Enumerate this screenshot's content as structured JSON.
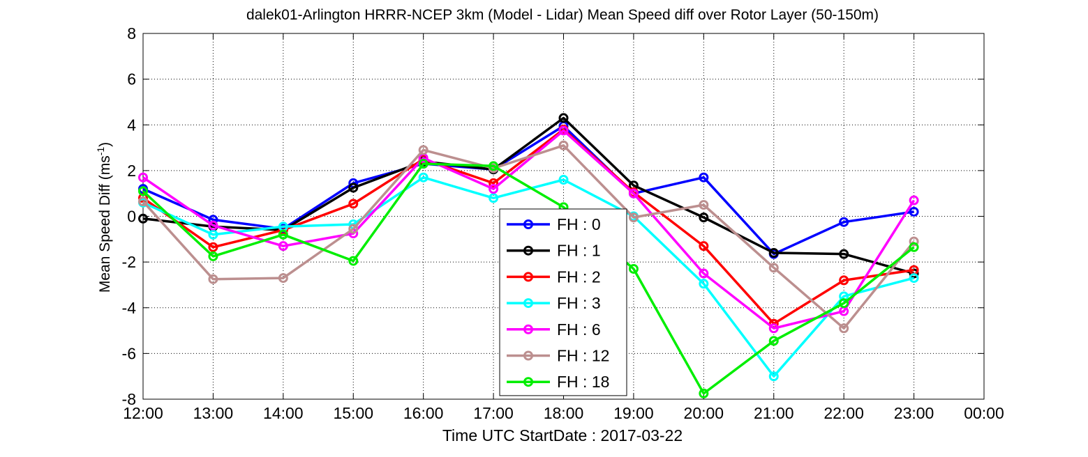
{
  "chart_data": {
    "type": "line",
    "title": "dalek01-Arlington HRRR-NCEP 3km (Model - Lidar) Mean Speed diff over Rotor Layer (50-150m)",
    "xlabel": "Time UTC    StartDate : 2017-03-22",
    "ylabel": "Mean Speed Diff (ms",
    "ylabel_sup": "-1",
    "ylabel_end": ")",
    "x_ticks": [
      "12:00",
      "13:00",
      "14:00",
      "15:00",
      "16:00",
      "17:00",
      "18:00",
      "19:00",
      "20:00",
      "21:00",
      "22:00",
      "23:00",
      "00:00"
    ],
    "xlim": [
      12,
      24
    ],
    "ylim": [
      -8,
      8
    ],
    "y_ticks": [
      "-8",
      "-6",
      "-4",
      "-2",
      "0",
      "2",
      "4",
      "6",
      "8"
    ],
    "grid": true,
    "legend_position": "bottom-center",
    "series": [
      {
        "name": "FH : 0",
        "color": "#0000ff",
        "x": [
          12,
          13,
          14,
          15,
          16,
          17,
          18,
          19,
          20,
          21,
          22,
          23
        ],
        "values": [
          1.2,
          -0.15,
          -0.55,
          1.45,
          2.3,
          2.05,
          3.95,
          1.0,
          1.7,
          -1.65,
          -0.25,
          0.2
        ]
      },
      {
        "name": "FH : 1",
        "color": "#000000",
        "x": [
          12,
          13,
          14,
          15,
          16,
          17,
          18,
          19,
          20,
          21,
          22,
          23
        ],
        "values": [
          -0.1,
          -0.45,
          -0.6,
          1.25,
          2.4,
          2.05,
          4.3,
          1.35,
          -0.05,
          -1.6,
          -1.65,
          -2.5
        ]
      },
      {
        "name": "FH : 2",
        "color": "#ff0000",
        "x": [
          12,
          13,
          14,
          15,
          16,
          17,
          18,
          19,
          20,
          21,
          22,
          23
        ],
        "values": [
          0.8,
          -1.35,
          -0.6,
          0.55,
          2.5,
          1.45,
          3.8,
          1.05,
          -1.3,
          -4.7,
          -2.8,
          -2.35
        ]
      },
      {
        "name": "FH : 3",
        "color": "#00ffff",
        "x": [
          12,
          13,
          14,
          15,
          16,
          17,
          18,
          19,
          20,
          21,
          22,
          23
        ],
        "values": [
          0.6,
          -0.8,
          -0.45,
          -0.35,
          1.7,
          0.8,
          1.6,
          0.0,
          -2.95,
          -7.0,
          -3.5,
          -2.7
        ]
      },
      {
        "name": "FH : 6",
        "color": "#ff00ff",
        "x": [
          12,
          13,
          14,
          15,
          16,
          17,
          18,
          19,
          20,
          21,
          22,
          23
        ],
        "values": [
          1.7,
          -0.4,
          -1.3,
          -0.75,
          2.55,
          1.2,
          3.75,
          1.0,
          -2.5,
          -4.9,
          -4.15,
          0.7
        ]
      },
      {
        "name": "FH : 12",
        "color": "#bc8f8f",
        "x": [
          12,
          13,
          14,
          15,
          16,
          17,
          18,
          19,
          20,
          21,
          22,
          23
        ],
        "values": [
          0.65,
          -2.75,
          -2.7,
          -0.55,
          2.9,
          2.1,
          3.1,
          -0.05,
          0.5,
          -2.25,
          -4.9,
          -1.1
        ]
      },
      {
        "name": "FH : 18",
        "color": "#00ee00",
        "x": [
          12,
          13,
          14,
          15,
          16,
          17,
          18,
          19,
          20,
          21,
          22,
          23
        ],
        "values": [
          1.1,
          -1.75,
          -0.8,
          -1.95,
          2.3,
          2.2,
          0.4,
          -2.3,
          -7.75,
          -5.45,
          -3.8,
          -1.35
        ]
      }
    ]
  }
}
